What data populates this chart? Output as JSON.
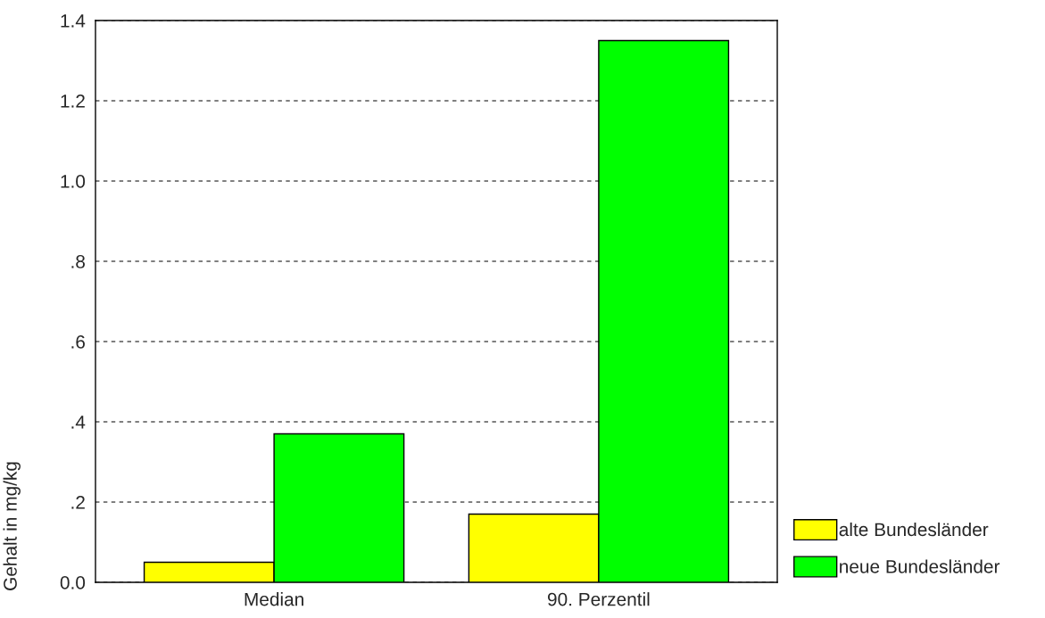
{
  "chart_data": {
    "type": "bar",
    "ylabel": "Gehalt in mg/kg",
    "categories": [
      "Median",
      "90. Perzentil"
    ],
    "series": [
      {
        "name": "alte Bundesländer",
        "color": "#ffff00",
        "values": [
          0.05,
          0.17
        ]
      },
      {
        "name": "neue Bundesländer",
        "color": "#00ff00",
        "values": [
          0.37,
          1.35
        ]
      }
    ],
    "ylim": [
      0,
      1.4
    ],
    "yticks": [
      {
        "value": 0,
        "label": "0.0"
      },
      {
        "value": 0.2,
        "label": ".2"
      },
      {
        "value": 0.4,
        "label": ".4"
      },
      {
        "value": 0.6,
        "label": ".6"
      },
      {
        "value": 0.8,
        "label": ".8"
      },
      {
        "value": 1.0,
        "label": "1.0"
      },
      {
        "value": 1.2,
        "label": "1.2"
      },
      {
        "value": 1.4,
        "label": "1.4"
      }
    ],
    "grid": "y",
    "legend": "bottom right"
  }
}
